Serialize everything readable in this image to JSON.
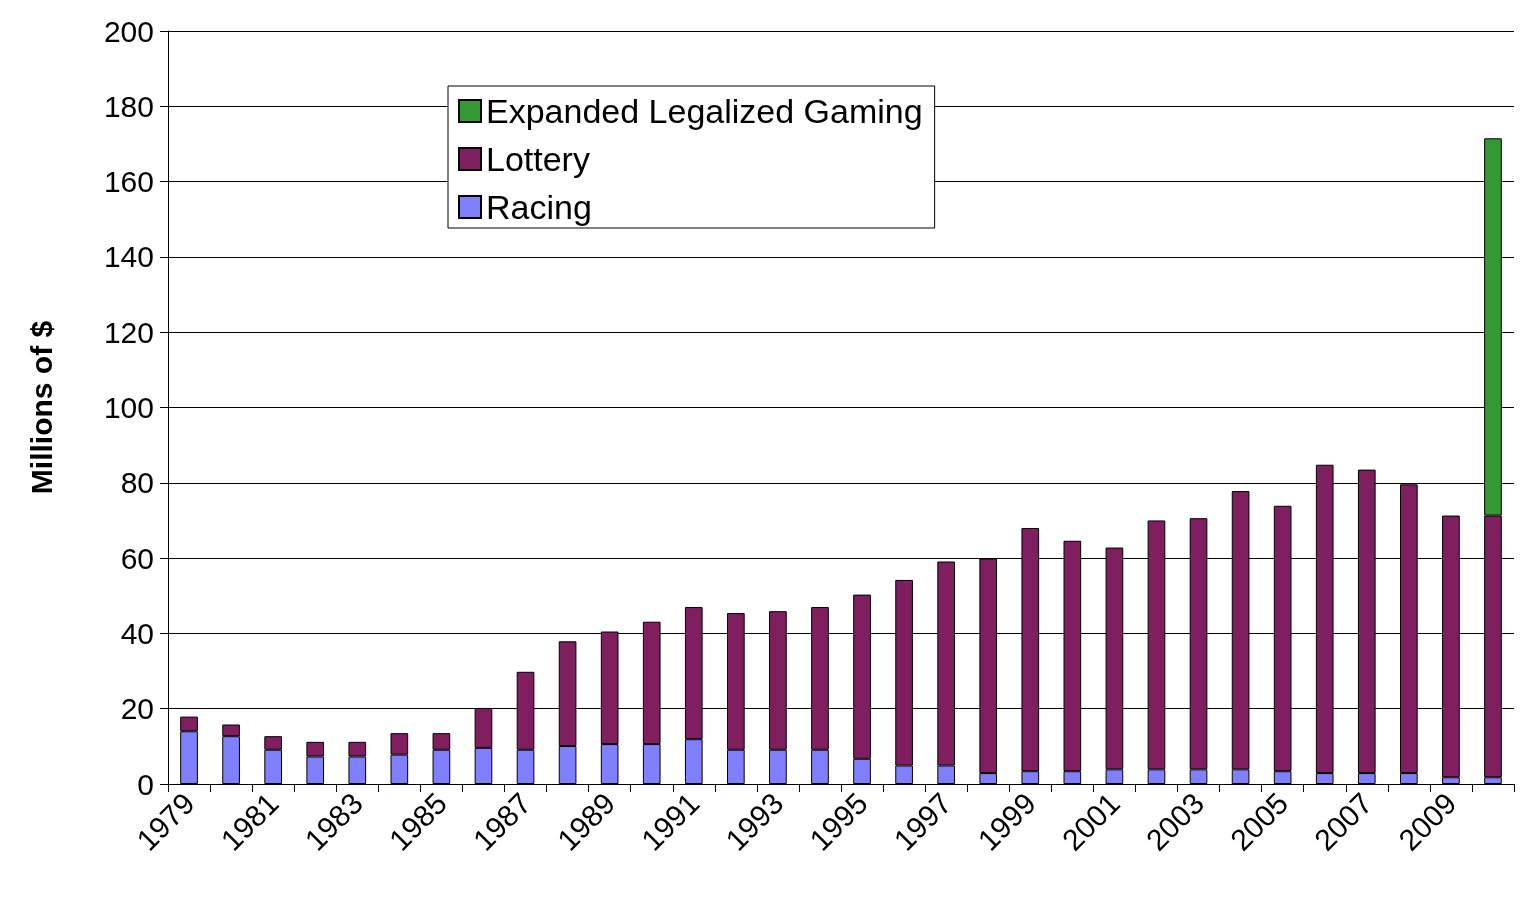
{
  "chart_data": {
    "type": "bar",
    "stacked": true,
    "ylabel": "Millions of $",
    "categories": [
      "1979",
      null,
      "1981",
      null,
      "1983",
      null,
      "1985",
      null,
      "1987",
      null,
      "1989",
      null,
      "1991",
      null,
      "1993",
      null,
      "1995",
      null,
      "1997",
      null,
      "1999",
      null,
      "2001",
      null,
      "2003",
      null,
      "2005",
      null,
      "2007",
      null,
      "2009",
      null
    ],
    "series": [
      {
        "name": "Racing",
        "color": "#8080ff",
        "values": [
          14.0,
          12.7,
          9.1,
          7.3,
          7.3,
          7.8,
          9.1,
          9.6,
          9.1,
          10.1,
          10.6,
          10.6,
          11.9,
          9.1,
          9.1,
          9.1,
          6.7,
          4.9,
          4.9,
          2.9,
          3.4,
          3.4,
          3.9,
          3.9,
          3.9,
          3.9,
          3.4,
          2.9,
          2.9,
          2.9,
          1.8,
          1.8
        ]
      },
      {
        "name": "Lottery",
        "color": "#7f1f5f",
        "values": [
          3.9,
          3.1,
          3.6,
          3.9,
          3.9,
          5.7,
          4.4,
          10.6,
          20.7,
          27.8,
          29.9,
          32.5,
          35.1,
          36.3,
          36.8,
          37.9,
          43.6,
          49.3,
          54.2,
          57.0,
          64.6,
          61.2,
          58.9,
          66.1,
          66.7,
          73.9,
          70.5,
          81.9,
          80.6,
          76.7,
          69.5,
          69.5
        ]
      },
      {
        "name": "Expanded Legalized Gaming",
        "color": "#339933",
        "values": [
          null,
          null,
          null,
          null,
          null,
          null,
          null,
          null,
          null,
          null,
          null,
          null,
          null,
          null,
          null,
          null,
          null,
          null,
          null,
          null,
          null,
          null,
          null,
          null,
          null,
          null,
          null,
          null,
          null,
          null,
          null,
          100.2
        ]
      }
    ],
    "ylim": [
      0,
      200
    ],
    "yticks": [
      0,
      20,
      40,
      60,
      80,
      100,
      120,
      140,
      160,
      180,
      200
    ],
    "grid": "y",
    "legend": "top"
  }
}
